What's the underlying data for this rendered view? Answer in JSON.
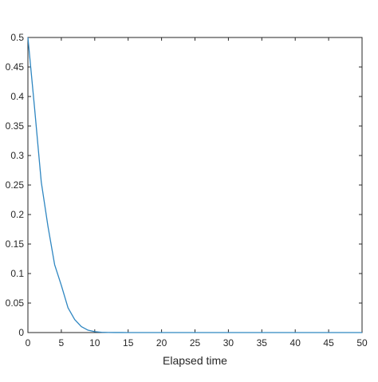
{
  "chart_data": {
    "type": "line",
    "title": "",
    "xlabel": "Elapsed time",
    "ylabel": "",
    "xlim": [
      0,
      50
    ],
    "ylim": [
      0,
      0.5
    ],
    "x_ticks": [
      0,
      5,
      10,
      15,
      20,
      25,
      30,
      35,
      40,
      45,
      50
    ],
    "x_tick_labels": [
      "0",
      "5",
      "10",
      "15",
      "20",
      "25",
      "30",
      "35",
      "40",
      "45",
      "50"
    ],
    "y_ticks": [
      0,
      0.05,
      0.1,
      0.15,
      0.2,
      0.25,
      0.3,
      0.35,
      0.4,
      0.45,
      0.5
    ],
    "y_tick_labels": [
      "0",
      "0.05",
      "0.1",
      "0.15",
      "0.2",
      "0.25",
      "0.3",
      "0.35",
      "0.4",
      "0.45",
      "0.5"
    ],
    "grid": false,
    "series": [
      {
        "color": "#2e86c1",
        "x": [
          0,
          1,
          2,
          3,
          4,
          5,
          6,
          7,
          8,
          9,
          10,
          11,
          12,
          13,
          14,
          15,
          20,
          25,
          30,
          35,
          40,
          45,
          50
        ],
        "y": [
          0.5,
          0.38,
          0.255,
          0.18,
          0.115,
          0.08,
          0.042,
          0.022,
          0.01,
          0.004,
          0.0015,
          0.0005,
          0.0002,
          0.0001,
          5e-05,
          0,
          0,
          0,
          0,
          0,
          0,
          0,
          0
        ]
      }
    ],
    "axis_color": "#262626",
    "background_color": "#ffffff"
  }
}
